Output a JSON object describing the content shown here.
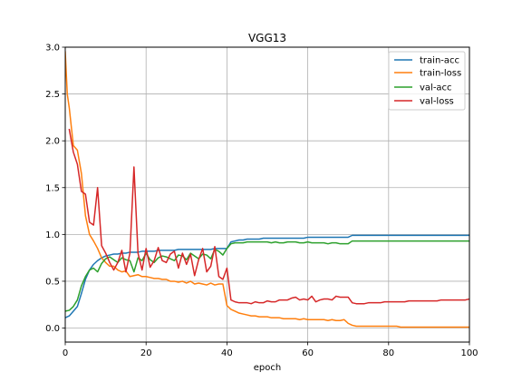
{
  "chart_data": {
    "type": "line",
    "title": "VGG13",
    "xlabel": "epoch",
    "ylabel": "",
    "xlim": [
      0,
      100
    ],
    "ylim": [
      -0.15,
      3.0
    ],
    "xticks": [
      0,
      20,
      40,
      60,
      80,
      100
    ],
    "xtick_labels": [
      "0",
      "20",
      "40",
      "60",
      "80",
      "100"
    ],
    "yticks": [
      0.0,
      0.5,
      1.0,
      1.5,
      2.0,
      2.5,
      3.0
    ],
    "ytick_labels": [
      "0.0",
      "0.5",
      "1.0",
      "1.5",
      "2.0",
      "2.5",
      "3.0"
    ],
    "grid": true,
    "legend_position": "upper right",
    "series": [
      {
        "name": "train-acc",
        "color": "#1f77b4",
        "x": [
          0,
          1,
          2,
          3,
          4,
          5,
          6,
          7,
          8,
          9,
          10,
          11,
          12,
          13,
          14,
          15,
          16,
          17,
          18,
          19,
          20,
          21,
          22,
          23,
          24,
          25,
          26,
          27,
          28,
          29,
          30,
          31,
          32,
          33,
          34,
          35,
          36,
          37,
          38,
          39,
          40,
          41,
          42,
          43,
          44,
          45,
          46,
          47,
          48,
          49,
          50,
          51,
          52,
          53,
          54,
          55,
          56,
          57,
          58,
          59,
          60,
          61,
          62,
          63,
          64,
          65,
          66,
          67,
          68,
          69,
          70,
          71,
          72,
          73,
          74,
          75,
          76,
          77,
          78,
          79,
          80,
          81,
          82,
          83,
          84,
          85,
          86,
          87,
          88,
          89,
          90,
          91,
          92,
          93,
          94,
          95,
          96,
          97,
          98,
          99,
          100
        ],
        "values": [
          0.11,
          0.13,
          0.18,
          0.23,
          0.37,
          0.52,
          0.62,
          0.68,
          0.72,
          0.75,
          0.77,
          0.78,
          0.79,
          0.79,
          0.8,
          0.8,
          0.81,
          0.81,
          0.81,
          0.82,
          0.82,
          0.82,
          0.82,
          0.83,
          0.83,
          0.83,
          0.83,
          0.83,
          0.84,
          0.84,
          0.84,
          0.84,
          0.84,
          0.84,
          0.84,
          0.84,
          0.84,
          0.85,
          0.85,
          0.85,
          0.85,
          0.92,
          0.93,
          0.94,
          0.94,
          0.95,
          0.95,
          0.95,
          0.95,
          0.96,
          0.96,
          0.96,
          0.96,
          0.96,
          0.96,
          0.96,
          0.96,
          0.96,
          0.96,
          0.96,
          0.97,
          0.97,
          0.97,
          0.97,
          0.97,
          0.97,
          0.97,
          0.97,
          0.97,
          0.97,
          0.97,
          0.99,
          0.99,
          0.99,
          0.99,
          0.99,
          0.99,
          0.99,
          0.99,
          0.99,
          0.99,
          0.99,
          0.99,
          0.99,
          0.99,
          0.99,
          0.99,
          0.99,
          0.99,
          0.99,
          0.99,
          0.99,
          0.99,
          0.99,
          0.99,
          0.99,
          0.99,
          0.99,
          0.99,
          0.99,
          0.99
        ]
      },
      {
        "name": "train-loss",
        "color": "#ff7f0e",
        "x": [
          0,
          0.5,
          1,
          2,
          3,
          4,
          5,
          6,
          7,
          8,
          9,
          10,
          11,
          12,
          13,
          14,
          15,
          16,
          17,
          18,
          19,
          20,
          21,
          22,
          23,
          24,
          25,
          26,
          27,
          28,
          29,
          30,
          31,
          32,
          33,
          34,
          35,
          36,
          37,
          38,
          39,
          40,
          41,
          42,
          43,
          44,
          45,
          46,
          47,
          48,
          49,
          50,
          51,
          52,
          53,
          54,
          55,
          56,
          57,
          58,
          59,
          60,
          61,
          62,
          63,
          64,
          65,
          66,
          67,
          68,
          69,
          70,
          71,
          72,
          73,
          74,
          75,
          76,
          77,
          78,
          79,
          80,
          81,
          82,
          83,
          84,
          85,
          86,
          87,
          88,
          89,
          90,
          91,
          92,
          93,
          94,
          95,
          96,
          97,
          98,
          99,
          100
        ],
        "values": [
          2.95,
          2.5,
          2.35,
          1.95,
          1.9,
          1.65,
          1.2,
          1.0,
          0.93,
          0.85,
          0.75,
          0.7,
          0.66,
          0.66,
          0.62,
          0.6,
          0.61,
          0.55,
          0.56,
          0.57,
          0.55,
          0.55,
          0.54,
          0.53,
          0.53,
          0.52,
          0.52,
          0.5,
          0.5,
          0.49,
          0.5,
          0.48,
          0.5,
          0.47,
          0.48,
          0.47,
          0.46,
          0.48,
          0.46,
          0.47,
          0.47,
          0.24,
          0.2,
          0.18,
          0.16,
          0.15,
          0.14,
          0.13,
          0.13,
          0.12,
          0.12,
          0.12,
          0.11,
          0.11,
          0.11,
          0.1,
          0.1,
          0.1,
          0.1,
          0.09,
          0.1,
          0.09,
          0.09,
          0.09,
          0.09,
          0.09,
          0.08,
          0.09,
          0.08,
          0.08,
          0.09,
          0.05,
          0.03,
          0.02,
          0.02,
          0.02,
          0.02,
          0.02,
          0.02,
          0.02,
          0.02,
          0.02,
          0.02,
          0.02,
          0.01,
          0.01,
          0.01,
          0.01,
          0.01,
          0.01,
          0.01,
          0.01,
          0.01,
          0.01,
          0.01,
          0.01,
          0.01,
          0.01,
          0.01,
          0.01,
          0.01,
          0.01
        ]
      },
      {
        "name": "val-acc",
        "color": "#2ca02c",
        "x": [
          0,
          1,
          2,
          3,
          4,
          5,
          6,
          7,
          8,
          9,
          10,
          11,
          12,
          13,
          14,
          15,
          16,
          17,
          18,
          19,
          20,
          21,
          22,
          23,
          24,
          25,
          26,
          27,
          28,
          29,
          30,
          31,
          32,
          33,
          34,
          35,
          36,
          37,
          38,
          39,
          40,
          41,
          42,
          43,
          44,
          45,
          46,
          47,
          48,
          49,
          50,
          51,
          52,
          53,
          54,
          55,
          56,
          57,
          58,
          59,
          60,
          61,
          62,
          63,
          64,
          65,
          66,
          67,
          68,
          69,
          70,
          71,
          72,
          73,
          74,
          75,
          76,
          77,
          78,
          79,
          80,
          81,
          82,
          83,
          84,
          85,
          86,
          87,
          88,
          89,
          90,
          91,
          92,
          93,
          94,
          95,
          96,
          97,
          98,
          99,
          100
        ],
        "values": [
          0.18,
          0.19,
          0.23,
          0.3,
          0.45,
          0.55,
          0.62,
          0.64,
          0.6,
          0.69,
          0.74,
          0.76,
          0.73,
          0.7,
          0.75,
          0.73,
          0.72,
          0.6,
          0.75,
          0.72,
          0.8,
          0.73,
          0.7,
          0.75,
          0.77,
          0.76,
          0.74,
          0.72,
          0.78,
          0.77,
          0.73,
          0.8,
          0.77,
          0.74,
          0.79,
          0.78,
          0.74,
          0.84,
          0.82,
          0.78,
          0.85,
          0.9,
          0.91,
          0.91,
          0.91,
          0.92,
          0.92,
          0.92,
          0.92,
          0.92,
          0.92,
          0.91,
          0.92,
          0.91,
          0.91,
          0.92,
          0.92,
          0.92,
          0.91,
          0.91,
          0.92,
          0.91,
          0.91,
          0.91,
          0.91,
          0.9,
          0.91,
          0.91,
          0.9,
          0.9,
          0.9,
          0.93,
          0.93,
          0.93,
          0.93,
          0.93,
          0.93,
          0.93,
          0.93,
          0.93,
          0.93,
          0.93,
          0.93,
          0.93,
          0.93,
          0.93,
          0.93,
          0.93,
          0.93,
          0.93,
          0.93,
          0.93,
          0.93,
          0.93,
          0.93,
          0.93,
          0.93,
          0.93,
          0.93,
          0.93,
          0.93
        ]
      },
      {
        "name": "val-loss",
        "color": "#d62728",
        "x": [
          1,
          2,
          3,
          4,
          5,
          6,
          7,
          8,
          9,
          10,
          11,
          12,
          13,
          14,
          15,
          16,
          17,
          18,
          19,
          20,
          21,
          22,
          23,
          24,
          25,
          26,
          27,
          28,
          29,
          30,
          31,
          32,
          33,
          34,
          35,
          36,
          37,
          38,
          39,
          40,
          41,
          42,
          43,
          44,
          45,
          46,
          47,
          48,
          49,
          50,
          51,
          52,
          53,
          54,
          55,
          56,
          57,
          58,
          59,
          60,
          61,
          62,
          63,
          64,
          65,
          66,
          67,
          68,
          69,
          70,
          71,
          72,
          73,
          74,
          75,
          76,
          77,
          78,
          79,
          80,
          81,
          82,
          83,
          84,
          85,
          86,
          87,
          88,
          89,
          90,
          91,
          92,
          93,
          94,
          95,
          96,
          97,
          98,
          99,
          100
        ],
        "values": [
          2.12,
          1.88,
          1.75,
          1.46,
          1.43,
          1.13,
          1.1,
          1.5,
          0.88,
          0.8,
          0.7,
          0.62,
          0.7,
          0.83,
          0.6,
          0.8,
          1.72,
          0.8,
          0.62,
          0.85,
          0.65,
          0.72,
          0.86,
          0.72,
          0.7,
          0.79,
          0.82,
          0.64,
          0.8,
          0.68,
          0.79,
          0.56,
          0.73,
          0.85,
          0.6,
          0.66,
          0.87,
          0.55,
          0.52,
          0.64,
          0.3,
          0.28,
          0.27,
          0.27,
          0.27,
          0.26,
          0.28,
          0.27,
          0.27,
          0.29,
          0.28,
          0.28,
          0.3,
          0.3,
          0.3,
          0.32,
          0.33,
          0.3,
          0.31,
          0.3,
          0.34,
          0.28,
          0.3,
          0.31,
          0.31,
          0.3,
          0.34,
          0.33,
          0.33,
          0.33,
          0.27,
          0.26,
          0.26,
          0.26,
          0.27,
          0.27,
          0.27,
          0.27,
          0.28,
          0.28,
          0.28,
          0.28,
          0.28,
          0.28,
          0.29,
          0.29,
          0.29,
          0.29,
          0.29,
          0.29,
          0.29,
          0.29,
          0.3,
          0.3,
          0.3,
          0.3,
          0.3,
          0.3,
          0.3,
          0.31
        ]
      }
    ]
  }
}
